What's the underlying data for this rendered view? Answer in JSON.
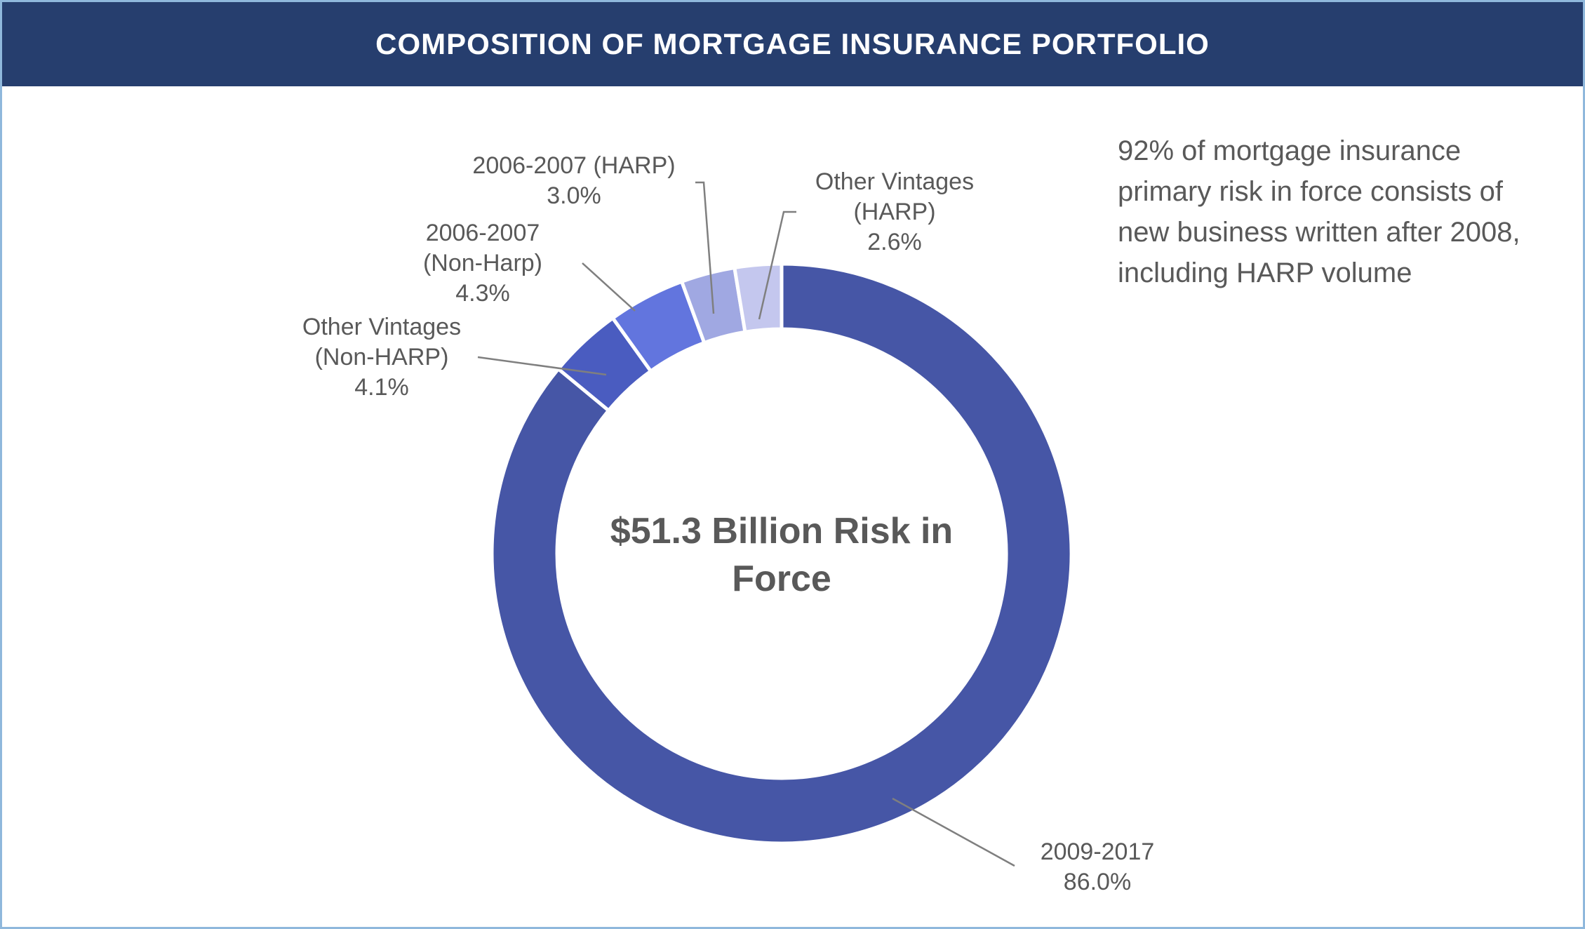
{
  "chart_data": {
    "type": "donut",
    "title": "COMPOSITION OF MORTGAGE INSURANCE PORTFOLIO",
    "center_label": "$51.3 Billion Risk in Force",
    "annotation": "92% of mortgage insurance primary risk in force consists of new business written after 2008, including HARP volume",
    "categories": [
      "2009-2017",
      "Other Vintages (Non-HARP)",
      "2006-2007 (Non-Harp)",
      "2006-2007 (HARP)",
      "Other Vintages (HARP)"
    ],
    "values": [
      86.0,
      4.1,
      4.3,
      3.0,
      2.6
    ],
    "value_labels": [
      "86.0%",
      "4.1%",
      "4.3%",
      "3.0%",
      "2.6%"
    ],
    "colors": [
      "#4656a6",
      "#4a5cc0",
      "#6275de",
      "#a0a8e2",
      "#c4c7ee"
    ]
  }
}
